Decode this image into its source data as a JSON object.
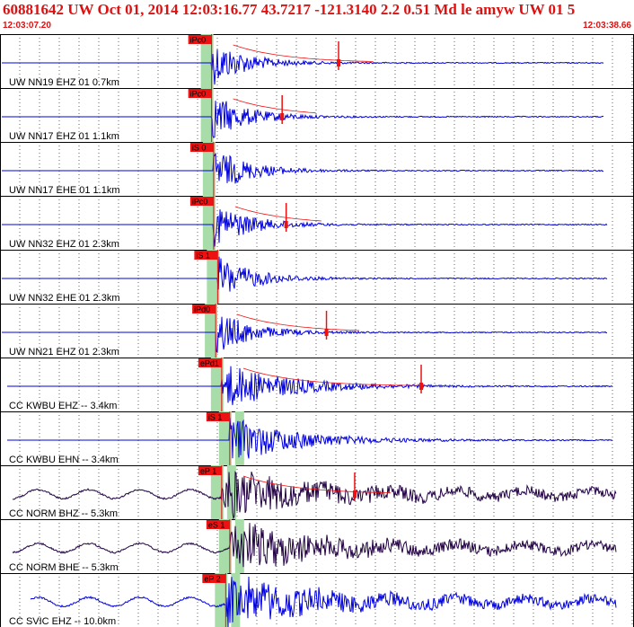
{
  "header": {
    "title": "60881642 UW Oct 01, 2014 12:03:16.77    43.7217 -121.3140  2.2 0.51 Md le amyw UW 01   5",
    "time_start": "12:03:07.20",
    "time_end": "12:03:38.66"
  },
  "colors": {
    "waveform": "#0000dd",
    "waveform_dark": "#220044",
    "pick": "#ee1111",
    "pick_window": "#a8dca8",
    "border": "#000000",
    "grid": "#000000"
  },
  "chart_data": {
    "type": "line",
    "title": "60881642 UW Oct 01, 2014 12:03:16.77    43.7217 -121.3140  2.2 0.51 Md le amyw UW 01   5",
    "x_axis": {
      "start": "12:03:07.20",
      "end": "12:03:38.66",
      "grid": "vertical dotted"
    },
    "traces": [
      {
        "label": "UW NN19 EHZ 01 0.7km",
        "pick": "iPc0",
        "pick_time": "12:03:17.7",
        "coda_time": "12:03:24.0",
        "color": "blue"
      },
      {
        "label": "UW NN17 EHZ 01 1.1km",
        "pick": "iPc0",
        "pick_time": "12:03:17.7",
        "coda_time": "12:03:21.2",
        "color": "blue"
      },
      {
        "label": "UW NN17 EHE 01 1.1km",
        "pick": "iS 0",
        "pick_time": "12:03:17.8",
        "coda_time": "",
        "color": "blue"
      },
      {
        "label": "UW NN32 EHZ 01 2.3km",
        "pick": "iPc0",
        "pick_time": "12:03:17.8",
        "coda_time": "12:03:21.4",
        "color": "blue"
      },
      {
        "label": "UW NN32 EHE 01 2.3km",
        "pick": "iS 1",
        "pick_time": "12:03:18.0",
        "coda_time": "",
        "color": "blue"
      },
      {
        "label": "UW NN21 EHZ 01 2.3km",
        "pick": "iPd0",
        "pick_time": "12:03:17.9",
        "coda_time": "12:03:23.4",
        "color": "blue"
      },
      {
        "label": "CC KWBU EHZ -- 3.4km",
        "pick": "ePd1",
        "pick_time": "12:03:18.2",
        "coda_time": "12:03:28.1",
        "color": "blue"
      },
      {
        "label": "CC KWBU EHN -- 3.4km",
        "pick": "iS 1",
        "pick_time": "12:03:18.6",
        "coda_time": "",
        "color": "blue"
      },
      {
        "label": "CC NORM BHZ -- 5.3km",
        "pick": "eP 1",
        "pick_time": "12:03:18.2",
        "coda_time": "12:03:24.8",
        "color": "dark"
      },
      {
        "label": "CC NORM BHE -- 5.3km",
        "pick": "eS 1",
        "pick_time": "12:03:18.6",
        "coda_time": "",
        "color": "dark"
      },
      {
        "label": "CC SVIC EHZ -- 10.0km",
        "pick": "eP 2",
        "pick_time": "12:03:18.4",
        "coda_time": "",
        "color": "blue"
      }
    ]
  }
}
